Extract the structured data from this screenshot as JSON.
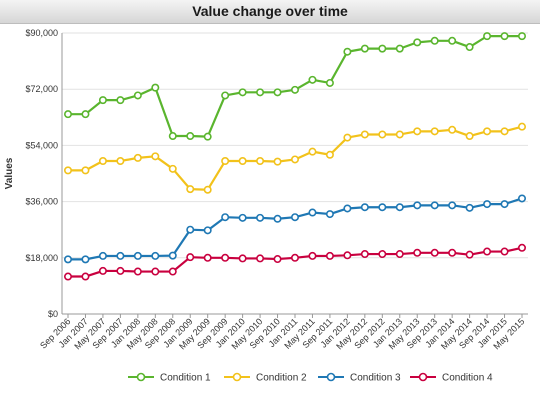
{
  "chart_data": {
    "type": "line",
    "title": "Value change over time",
    "ylabel": "Values",
    "xlabel": "",
    "ylim": [
      0,
      90000
    ],
    "y_ticks": [
      0,
      18000,
      36000,
      54000,
      72000,
      90000
    ],
    "y_tick_labels": [
      "$0",
      "$18,000",
      "$36,000",
      "$54,000",
      "$72,000",
      "$90,000"
    ],
    "grid": true,
    "legend_position": "bottom",
    "categories": [
      "Sep 2006",
      "Jan 2007",
      "May 2007",
      "Sep 2007",
      "Jan 2008",
      "May 2008",
      "Sep 2008",
      "Jan 2009",
      "May 2009",
      "Sep 2009",
      "Jan 2010",
      "May 2010",
      "Sep 2010",
      "Jan 2011",
      "May 2011",
      "Sep 2011",
      "Jan 2012",
      "May 2012",
      "Sep 2012",
      "Jan 2013",
      "May 2013",
      "Sep 2013",
      "Jan 2014",
      "May 2014",
      "Sep 2014",
      "Jan 2015",
      "May 2015"
    ],
    "series": [
      {
        "name": "Condition 1",
        "color": "#5ab52e",
        "values": [
          64000,
          64000,
          68500,
          68500,
          70000,
          72500,
          57000,
          57000,
          56800,
          70000,
          71000,
          71000,
          71000,
          71800,
          75000,
          74000,
          84000,
          85000,
          85000,
          85000,
          87000,
          87500,
          87500,
          85500,
          89000,
          89000,
          89000
        ]
      },
      {
        "name": "Condition 2",
        "color": "#f2c21b",
        "values": [
          46000,
          46000,
          49000,
          49000,
          50000,
          50500,
          46500,
          40000,
          39800,
          49000,
          49000,
          49000,
          48800,
          49500,
          52000,
          51000,
          56500,
          57500,
          57500,
          57500,
          58500,
          58500,
          59000,
          57000,
          58500,
          58500,
          60000
        ]
      },
      {
        "name": "Condition 3",
        "color": "#1f78b4",
        "values": [
          17500,
          17500,
          18600,
          18600,
          18600,
          18600,
          18700,
          27000,
          26800,
          31000,
          30800,
          30800,
          30500,
          31000,
          32500,
          32000,
          33800,
          34200,
          34200,
          34200,
          34800,
          34800,
          34800,
          34000,
          35200,
          35200,
          37000
        ]
      },
      {
        "name": "Condition 4",
        "color": "#c9003f",
        "values": [
          12000,
          12000,
          13800,
          13800,
          13600,
          13600,
          13600,
          18200,
          18000,
          18000,
          17800,
          17800,
          17600,
          18000,
          18600,
          18600,
          18800,
          19200,
          19200,
          19200,
          19600,
          19600,
          19600,
          19000,
          20000,
          20000,
          21200
        ]
      }
    ]
  }
}
